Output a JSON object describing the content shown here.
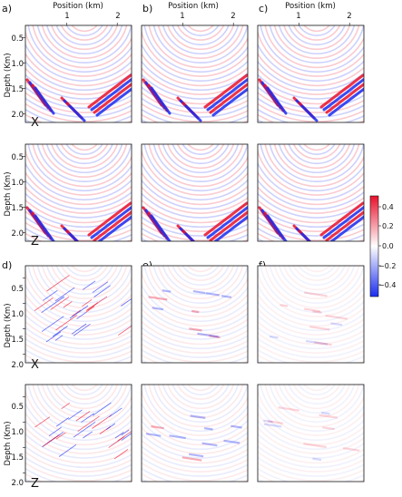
{
  "figure": {
    "panel_labels": [
      "a)",
      "b)",
      "c)",
      "d)",
      "e)",
      "f)"
    ],
    "x_axis_label": "Position (km)",
    "x_ticks": [
      "1",
      "2"
    ],
    "y_axis_label": "Depth (Km)",
    "y_ticks": [
      "0.5",
      "1.0",
      "1.5",
      "2.0"
    ],
    "component_labels": [
      "X",
      "Z",
      "X",
      "Z"
    ]
  },
  "colorbar": {
    "colormap": "bwr",
    "ticks": [
      "0.4",
      "0.2",
      "0.0",
      "−0.2",
      "−0.4"
    ],
    "range": [
      -0.5,
      0.5
    ],
    "colors": {
      "positive": "#e8112b",
      "zero": "#ffffff",
      "negative": "#1a2df0"
    }
  },
  "chart_data": [
    {
      "type": "heatmap",
      "panel": "a)",
      "component": "X",
      "x_ticks": [
        1,
        2
      ],
      "y_ticks": [
        0.5,
        1.0,
        1.5,
        2.0
      ],
      "xlabel": "Position (km)",
      "ylabel": "Depth (Km)",
      "value_range": [
        -0.5,
        0.5
      ]
    },
    {
      "type": "heatmap",
      "panel": "b)",
      "component": "X",
      "x_ticks": [
        1,
        2
      ],
      "xlabel": "Position (km)",
      "value_range": [
        -0.5,
        0.5
      ]
    },
    {
      "type": "heatmap",
      "panel": "c)",
      "component": "X",
      "x_ticks": [
        1,
        2
      ],
      "xlabel": "Position (km)",
      "value_range": [
        -0.5,
        0.5
      ]
    },
    {
      "type": "heatmap",
      "panel": "a)",
      "component": "Z",
      "y_ticks": [
        0.5,
        1.0,
        1.5,
        2.0
      ],
      "ylabel": "Depth (Km)",
      "value_range": [
        -0.5,
        0.5
      ]
    },
    {
      "type": "heatmap",
      "panel": "b)",
      "component": "Z",
      "value_range": [
        -0.5,
        0.5
      ]
    },
    {
      "type": "heatmap",
      "panel": "c)",
      "component": "Z",
      "value_range": [
        -0.5,
        0.5
      ]
    },
    {
      "type": "heatmap",
      "panel": "d)",
      "component": "X",
      "y_ticks": [
        0.5,
        1.0,
        1.5,
        2.0
      ],
      "ylabel": "Depth (Km)",
      "value_range": [
        -0.5,
        0.5
      ]
    },
    {
      "type": "heatmap",
      "panel": "e)",
      "component": "X",
      "value_range": [
        -0.5,
        0.5
      ]
    },
    {
      "type": "heatmap",
      "panel": "f)",
      "component": "X",
      "value_range": [
        -0.5,
        0.5
      ]
    },
    {
      "type": "heatmap",
      "panel": "d)",
      "component": "Z",
      "y_ticks": [
        0.5,
        1.0,
        1.5,
        2.0
      ],
      "ylabel": "Depth (Km)",
      "value_range": [
        -0.5,
        0.5
      ]
    },
    {
      "type": "heatmap",
      "panel": "e)",
      "component": "Z",
      "value_range": [
        -0.5,
        0.5
      ]
    },
    {
      "type": "heatmap",
      "panel": "f)",
      "component": "Z",
      "value_range": [
        -0.5,
        0.5
      ]
    }
  ]
}
